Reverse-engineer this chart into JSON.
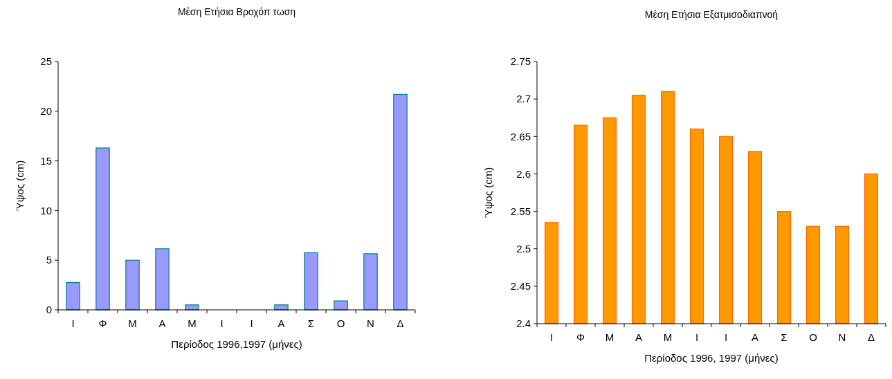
{
  "chart_data": [
    {
      "type": "bar",
      "title": "Μέση Ετήσια Βροχόπ τωση",
      "xlabel": "Περίοδος 1996,1997 (μήνες)",
      "ylabel": "Ύψος (cm)",
      "categories": [
        "Ι",
        "Φ",
        "Μ",
        "Α",
        "Μ",
        "Ι",
        "Ι",
        "Α",
        "Σ",
        "Ο",
        "Ν",
        "Δ"
      ],
      "series": [
        {
          "color": "#9999ff",
          "values": [
            2.75,
            16.3,
            5.0,
            6.15,
            0.5,
            0,
            0,
            0.5,
            5.75,
            0.9,
            5.65,
            21.7
          ]
        }
      ],
      "ylim": [
        0,
        25
      ],
      "yticks": [
        0,
        5,
        10,
        15,
        20,
        25
      ]
    },
    {
      "type": "bar",
      "title": "Μέση Ετήσια Εξατμισοδιαπνοή",
      "xlabel": "Περίοδος 1996, 1997 (μήνες)",
      "ylabel": "Ύψος (cm)",
      "categories": [
        "Ι",
        "Φ",
        "Μ",
        "Α",
        "Μ",
        "Ι",
        "Ι",
        "Α",
        "Σ",
        "Ο",
        "Ν",
        "Δ"
      ],
      "series": [
        {
          "color": "#ff9900",
          "values": [
            2.535,
            2.665,
            2.675,
            2.705,
            2.71,
            2.66,
            2.65,
            2.63,
            2.55,
            2.53,
            2.53,
            2.6
          ]
        }
      ],
      "ylim": [
        2.4,
        2.75
      ],
      "yticks": [
        2.4,
        2.45,
        2.5,
        2.55,
        2.6,
        2.65,
        2.7,
        2.75
      ]
    }
  ]
}
